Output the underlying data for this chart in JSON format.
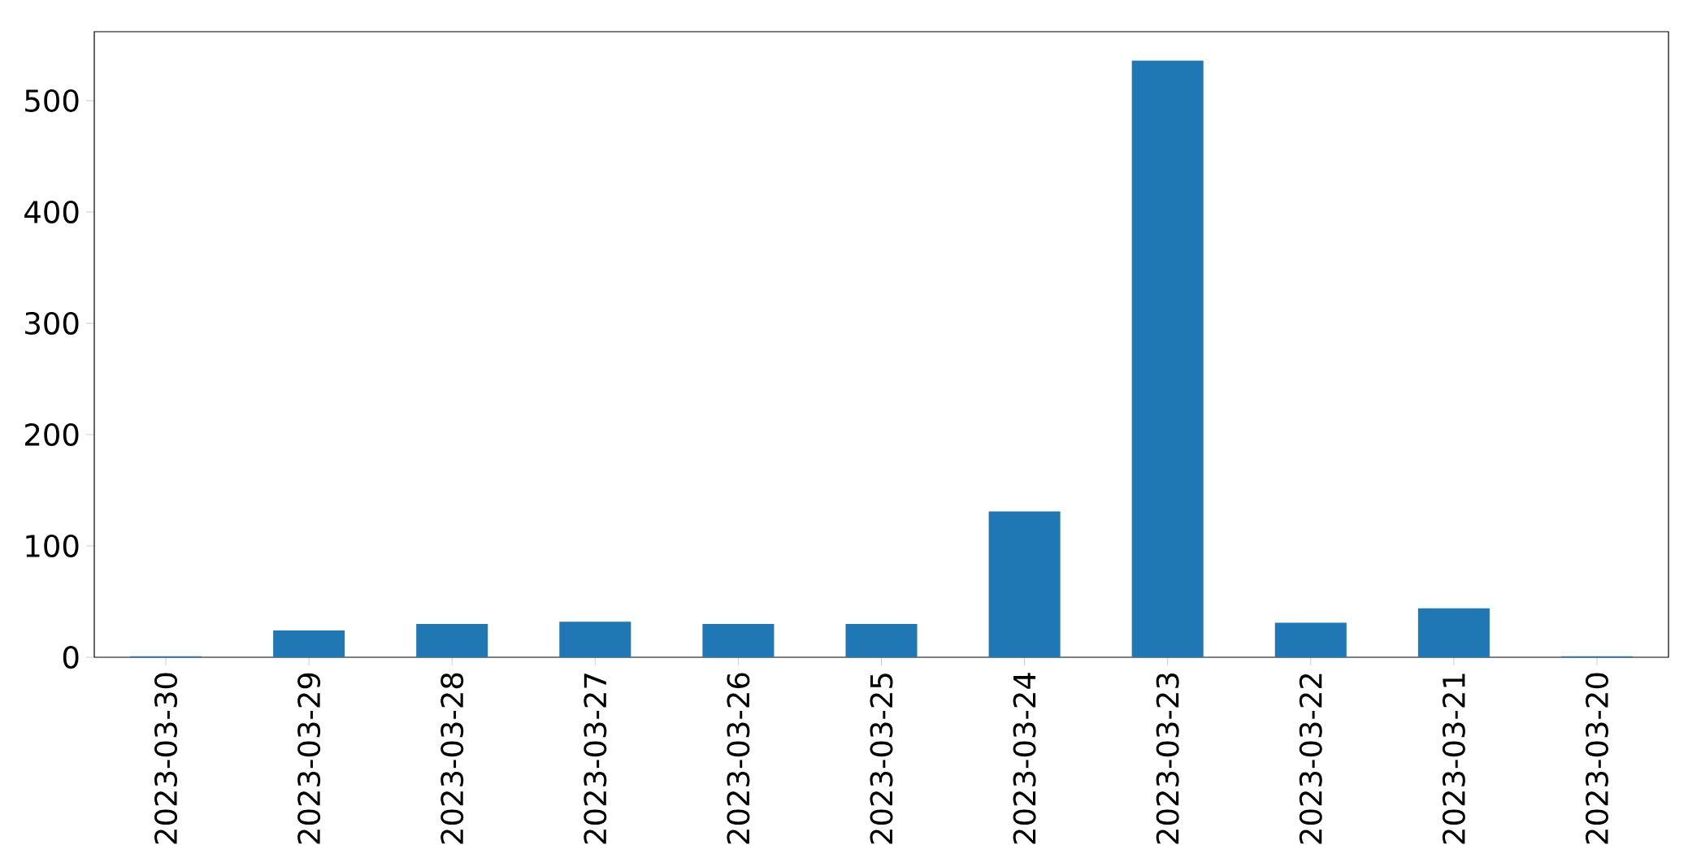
{
  "chart_data": {
    "type": "bar",
    "categories": [
      "2023-03-30",
      "2023-03-29",
      "2023-03-28",
      "2023-03-27",
      "2023-03-26",
      "2023-03-25",
      "2023-03-24",
      "2023-03-23",
      "2023-03-22",
      "2023-03-21",
      "2023-03-20"
    ],
    "values": [
      1,
      24,
      30,
      32,
      30,
      30,
      131,
      536,
      31,
      44,
      1
    ],
    "color": "#1f77b4",
    "ylim": [
      0,
      562
    ],
    "yticks": [
      0,
      100,
      200,
      300,
      400,
      500
    ],
    "grid": false
  }
}
